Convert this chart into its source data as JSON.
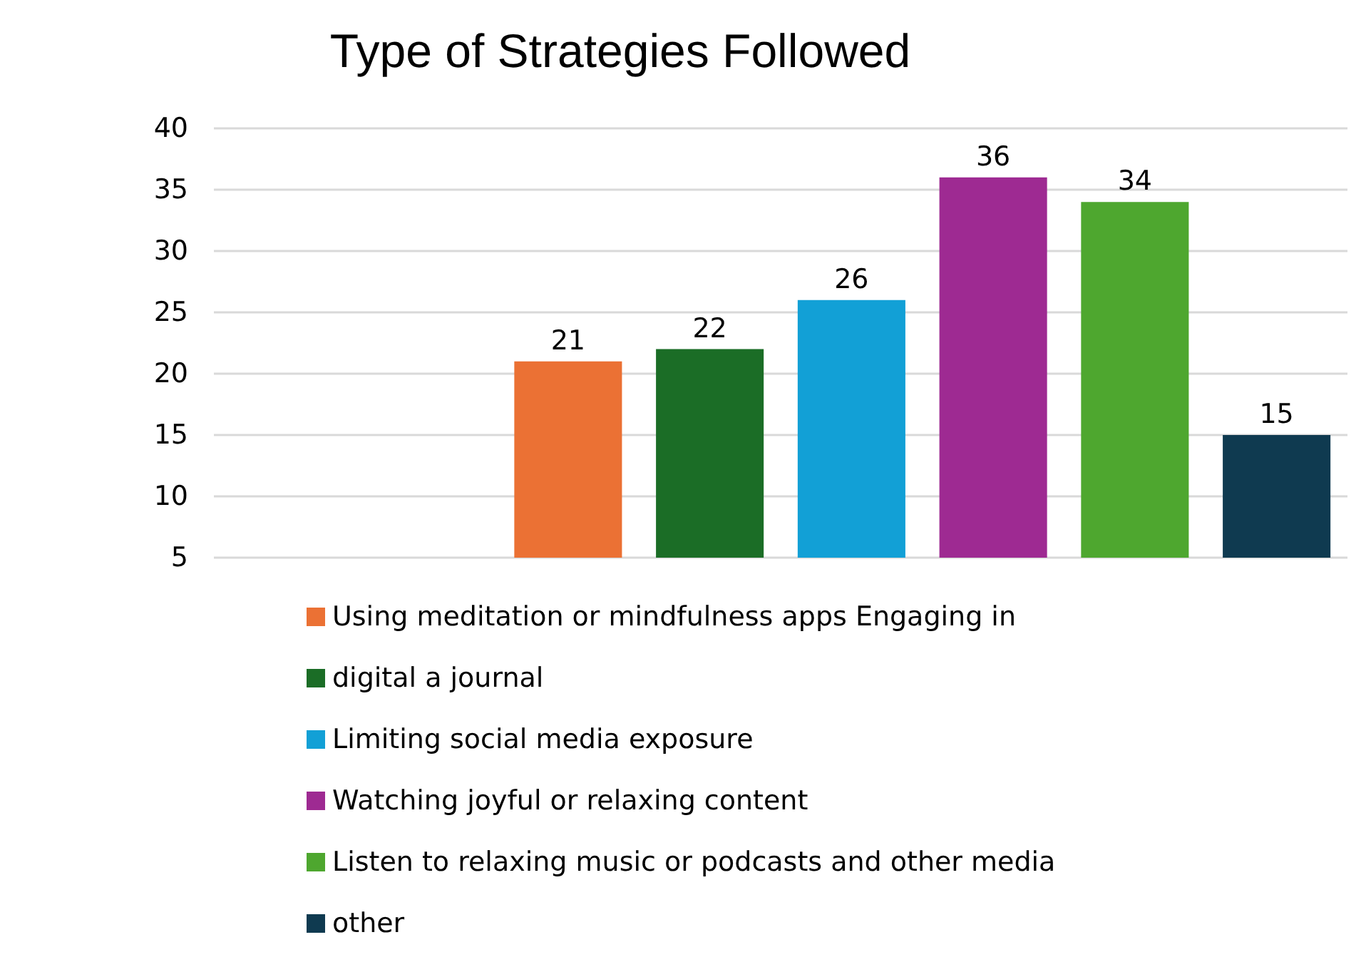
{
  "chart_data": {
    "type": "bar",
    "title": "Type of Strategies Followed",
    "categories": [
      null,
      null,
      null,
      null,
      null,
      null,
      null,
      null
    ],
    "series": [
      {
        "name": "Using meditation or mindfulness apps Engaging in",
        "color": "#eb7134",
        "values": [
          null,
          null,
          21,
          null,
          null,
          null,
          null,
          null
        ]
      },
      {
        "name": "digital a journal",
        "color": "#1b6d26",
        "values": [
          null,
          null,
          null,
          22,
          null,
          null,
          null,
          null
        ]
      },
      {
        "name": "Limiting social media exposure",
        "color": "#12a0d6",
        "values": [
          null,
          null,
          null,
          null,
          26,
          null,
          null,
          null
        ]
      },
      {
        "name": "Watching joyful or relaxing content",
        "color": "#9e2a92",
        "values": [
          null,
          null,
          null,
          null,
          null,
          36,
          null,
          null
        ]
      },
      {
        "name": "Listen to relaxing music or podcasts and other media",
        "color": "#4ea72f",
        "values": [
          null,
          null,
          null,
          null,
          null,
          null,
          34,
          null
        ]
      },
      {
        "name": "other",
        "color": "#0f3a50",
        "values": [
          null,
          null,
          null,
          null,
          null,
          null,
          null,
          15
        ]
      }
    ],
    "ylim": [
      5,
      40
    ],
    "yticks": [
      5,
      10,
      15,
      20,
      25,
      30,
      35,
      40
    ],
    "grid": "y",
    "data_labels": true,
    "legend": "bottom",
    "tick_labels": "y"
  }
}
